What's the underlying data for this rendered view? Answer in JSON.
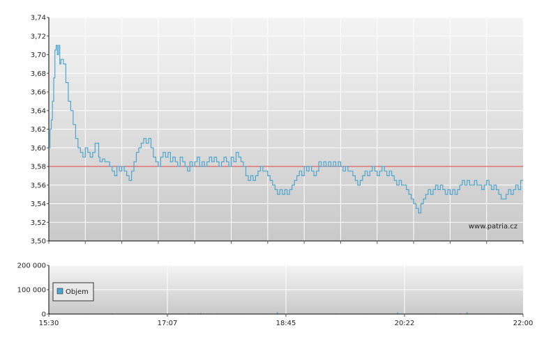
{
  "watermark": "www.patria.cz",
  "colors": {
    "line": "#4da6cf",
    "reference": "#e04545",
    "grid": "#ffffff",
    "axis": "#000000",
    "bg_top": "#f2f2f2",
    "bg_bottom": "#c8c8c8",
    "volume": "#4da6cf"
  },
  "chart_data": [
    {
      "type": "line",
      "name": "price",
      "ylim": [
        3.5,
        3.74
      ],
      "y_ticks": [
        "3,50",
        "3,52",
        "3,54",
        "3,56",
        "3,58",
        "3,60",
        "3,62",
        "3,64",
        "3,66",
        "3,68",
        "3,70",
        "3,72",
        "3,74"
      ],
      "x_range_minutes": [
        0,
        390
      ],
      "x_ticks": [
        "15:30",
        "17:07",
        "18:45",
        "20:22",
        "22:00"
      ],
      "reference_line": 3.58,
      "grid": true,
      "points": [
        [
          0,
          3.6
        ],
        [
          1,
          3.62
        ],
        [
          2,
          3.63
        ],
        [
          3,
          3.65
        ],
        [
          4,
          3.675
        ],
        [
          5,
          3.705
        ],
        [
          6,
          3.71
        ],
        [
          7,
          3.7
        ],
        [
          8,
          3.71
        ],
        [
          9,
          3.69
        ],
        [
          10,
          3.695
        ],
        [
          12,
          3.69
        ],
        [
          14,
          3.67
        ],
        [
          16,
          3.65
        ],
        [
          18,
          3.64
        ],
        [
          20,
          3.625
        ],
        [
          22,
          3.61
        ],
        [
          24,
          3.6
        ],
        [
          26,
          3.595
        ],
        [
          28,
          3.59
        ],
        [
          30,
          3.6
        ],
        [
          32,
          3.595
        ],
        [
          34,
          3.59
        ],
        [
          36,
          3.595
        ],
        [
          38,
          3.605
        ],
        [
          40,
          3.605
        ],
        [
          41,
          3.59
        ],
        [
          42,
          3.585
        ],
        [
          44,
          3.588
        ],
        [
          46,
          3.585
        ],
        [
          48,
          3.585
        ],
        [
          50,
          3.58
        ],
        [
          52,
          3.575
        ],
        [
          54,
          3.57
        ],
        [
          56,
          3.58
        ],
        [
          58,
          3.575
        ],
        [
          60,
          3.58
        ],
        [
          62,
          3.575
        ],
        [
          64,
          3.57
        ],
        [
          66,
          3.565
        ],
        [
          68,
          3.575
        ],
        [
          70,
          3.585
        ],
        [
          72,
          3.595
        ],
        [
          74,
          3.6
        ],
        [
          76,
          3.605
        ],
        [
          78,
          3.61
        ],
        [
          80,
          3.605
        ],
        [
          82,
          3.61
        ],
        [
          84,
          3.6
        ],
        [
          86,
          3.59
        ],
        [
          88,
          3.585
        ],
        [
          90,
          3.58
        ],
        [
          92,
          3.59
        ],
        [
          94,
          3.595
        ],
        [
          96,
          3.59
        ],
        [
          98,
          3.595
        ],
        [
          100,
          3.585
        ],
        [
          102,
          3.59
        ],
        [
          104,
          3.585
        ],
        [
          106,
          3.58
        ],
        [
          108,
          3.59
        ],
        [
          110,
          3.585
        ],
        [
          112,
          3.58
        ],
        [
          114,
          3.575
        ],
        [
          116,
          3.585
        ],
        [
          118,
          3.58
        ],
        [
          120,
          3.585
        ],
        [
          122,
          3.59
        ],
        [
          124,
          3.58
        ],
        [
          126,
          3.585
        ],
        [
          128,
          3.58
        ],
        [
          130,
          3.585
        ],
        [
          132,
          3.59
        ],
        [
          134,
          3.585
        ],
        [
          136,
          3.59
        ],
        [
          138,
          3.585
        ],
        [
          140,
          3.58
        ],
        [
          142,
          3.585
        ],
        [
          144,
          3.59
        ],
        [
          146,
          3.585
        ],
        [
          148,
          3.58
        ],
        [
          150,
          3.59
        ],
        [
          152,
          3.585
        ],
        [
          154,
          3.595
        ],
        [
          156,
          3.59
        ],
        [
          158,
          3.585
        ],
        [
          160,
          3.58
        ],
        [
          162,
          3.57
        ],
        [
          164,
          3.565
        ],
        [
          166,
          3.57
        ],
        [
          168,
          3.565
        ],
        [
          170,
          3.57
        ],
        [
          172,
          3.575
        ],
        [
          174,
          3.58
        ],
        [
          176,
          3.575
        ],
        [
          178,
          3.575
        ],
        [
          180,
          3.57
        ],
        [
          182,
          3.565
        ],
        [
          184,
          3.56
        ],
        [
          186,
          3.555
        ],
        [
          188,
          3.55
        ],
        [
          190,
          3.555
        ],
        [
          192,
          3.55
        ],
        [
          194,
          3.555
        ],
        [
          196,
          3.55
        ],
        [
          198,
          3.555
        ],
        [
          200,
          3.56
        ],
        [
          202,
          3.565
        ],
        [
          204,
          3.57
        ],
        [
          206,
          3.575
        ],
        [
          208,
          3.57
        ],
        [
          210,
          3.58
        ],
        [
          212,
          3.575
        ],
        [
          214,
          3.58
        ],
        [
          216,
          3.575
        ],
        [
          218,
          3.57
        ],
        [
          220,
          3.575
        ],
        [
          222,
          3.585
        ],
        [
          224,
          3.58
        ],
        [
          226,
          3.585
        ],
        [
          228,
          3.58
        ],
        [
          230,
          3.585
        ],
        [
          232,
          3.58
        ],
        [
          234,
          3.585
        ],
        [
          236,
          3.58
        ],
        [
          238,
          3.585
        ],
        [
          240,
          3.58
        ],
        [
          242,
          3.575
        ],
        [
          244,
          3.58
        ],
        [
          246,
          3.575
        ],
        [
          248,
          3.575
        ],
        [
          250,
          3.57
        ],
        [
          252,
          3.565
        ],
        [
          254,
          3.56
        ],
        [
          256,
          3.565
        ],
        [
          258,
          3.57
        ],
        [
          260,
          3.575
        ],
        [
          262,
          3.57
        ],
        [
          264,
          3.575
        ],
        [
          266,
          3.58
        ],
        [
          268,
          3.575
        ],
        [
          270,
          3.57
        ],
        [
          272,
          3.575
        ],
        [
          274,
          3.58
        ],
        [
          276,
          3.575
        ],
        [
          278,
          3.57
        ],
        [
          280,
          3.575
        ],
        [
          282,
          3.57
        ],
        [
          284,
          3.565
        ],
        [
          286,
          3.56
        ],
        [
          288,
          3.565
        ],
        [
          290,
          3.56
        ],
        [
          292,
          3.56
        ],
        [
          294,
          3.555
        ],
        [
          296,
          3.55
        ],
        [
          298,
          3.545
        ],
        [
          300,
          3.54
        ],
        [
          302,
          3.535
        ],
        [
          304,
          3.53
        ],
        [
          306,
          3.54
        ],
        [
          308,
          3.545
        ],
        [
          310,
          3.55
        ],
        [
          312,
          3.555
        ],
        [
          314,
          3.55
        ],
        [
          316,
          3.555
        ],
        [
          318,
          3.56
        ],
        [
          320,
          3.555
        ],
        [
          322,
          3.56
        ],
        [
          324,
          3.555
        ],
        [
          326,
          3.55
        ],
        [
          328,
          3.555
        ],
        [
          330,
          3.55
        ],
        [
          332,
          3.555
        ],
        [
          334,
          3.55
        ],
        [
          336,
          3.555
        ],
        [
          338,
          3.56
        ],
        [
          340,
          3.565
        ],
        [
          342,
          3.56
        ],
        [
          344,
          3.565
        ],
        [
          346,
          3.56
        ],
        [
          348,
          3.56
        ],
        [
          350,
          3.565
        ],
        [
          352,
          3.56
        ],
        [
          354,
          3.56
        ],
        [
          356,
          3.555
        ],
        [
          358,
          3.56
        ],
        [
          360,
          3.565
        ],
        [
          362,
          3.56
        ],
        [
          364,
          3.555
        ],
        [
          366,
          3.56
        ],
        [
          368,
          3.555
        ],
        [
          370,
          3.55
        ],
        [
          372,
          3.545
        ],
        [
          374,
          3.545
        ],
        [
          376,
          3.55
        ],
        [
          378,
          3.555
        ],
        [
          380,
          3.55
        ],
        [
          382,
          3.555
        ],
        [
          384,
          3.56
        ],
        [
          386,
          3.555
        ],
        [
          388,
          3.565
        ],
        [
          390,
          3.565
        ]
      ]
    },
    {
      "type": "bar",
      "name": "Objem",
      "ylim": [
        0,
        200000
      ],
      "y_ticks": [
        "0",
        "100 000",
        "200 000"
      ],
      "x_ticks": [
        "15:30",
        "17:07",
        "18:45",
        "20:22",
        "22:00"
      ],
      "legend": "Objem",
      "legend_placement": "middle-left",
      "grid": true,
      "bars": [
        [
          30,
          1500
        ],
        [
          52,
          2500
        ],
        [
          70,
          1800
        ],
        [
          90,
          1200
        ],
        [
          115,
          3000
        ],
        [
          125,
          4000
        ],
        [
          138,
          2200
        ],
        [
          160,
          1500
        ],
        [
          178,
          1800
        ],
        [
          188,
          9000
        ],
        [
          196,
          1800
        ],
        [
          218,
          1200
        ],
        [
          236,
          2000
        ],
        [
          260,
          1500
        ],
        [
          280,
          1300
        ],
        [
          287,
          8000
        ],
        [
          292,
          1800
        ],
        [
          306,
          1500
        ],
        [
          318,
          2200
        ],
        [
          326,
          1600
        ],
        [
          338,
          2500
        ],
        [
          344,
          9000
        ],
        [
          356,
          1500
        ],
        [
          370,
          1800
        ],
        [
          380,
          2200
        ],
        [
          388,
          1600
        ]
      ]
    }
  ]
}
